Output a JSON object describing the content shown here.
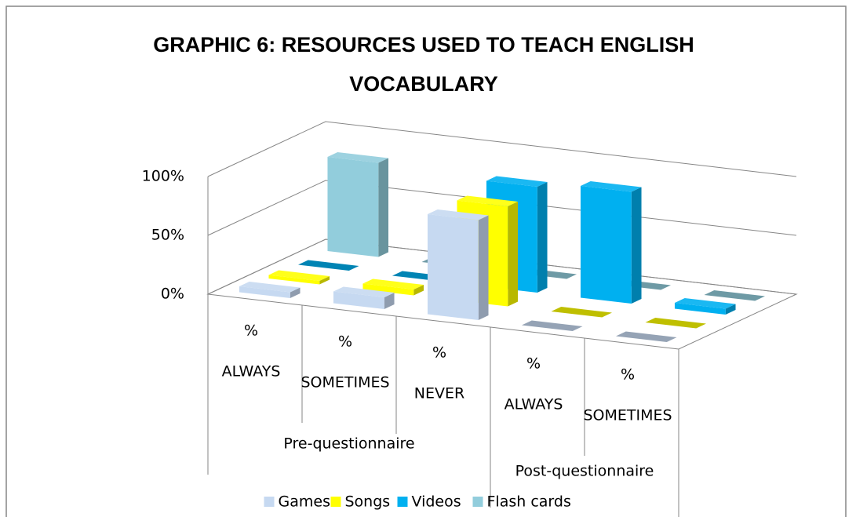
{
  "chart_data": {
    "type": "bar3d",
    "title": "GRAPHIC 6: RESOURCES USED TO TEACH ENGLISH VOCABULARY",
    "categories": [
      "%",
      "%",
      "%",
      "%",
      "%"
    ],
    "subcategories": [
      "ALWAYS",
      "SOMETIMES",
      "NEVER",
      "ALWAYS",
      "SOMETIMES"
    ],
    "groups": [
      {
        "name": "Pre-questionnaire",
        "span": 3
      },
      {
        "name": "Post-questionnaire",
        "span": 2
      }
    ],
    "series": [
      {
        "name": "Games",
        "color": "#c6d9f1",
        "values": [
          5,
          10,
          85,
          0,
          0
        ]
      },
      {
        "name": "Songs",
        "color": "#ffff00",
        "values": [
          3,
          5,
          85,
          0,
          0
        ]
      },
      {
        "name": "Videos",
        "color": "#00b0f0",
        "values": [
          0,
          0,
          90,
          95,
          5
        ]
      },
      {
        "name": "Flash cards",
        "color": "#92cddc",
        "values": [
          80,
          0,
          0,
          0,
          0
        ]
      }
    ],
    "ylim": [
      0,
      100
    ],
    "yticks": [
      {
        "value": 0,
        "label": "0%"
      },
      {
        "value": 50,
        "label": "50%"
      },
      {
        "value": 100,
        "label": "100%"
      }
    ],
    "grid": true,
    "legend": "bottom"
  }
}
